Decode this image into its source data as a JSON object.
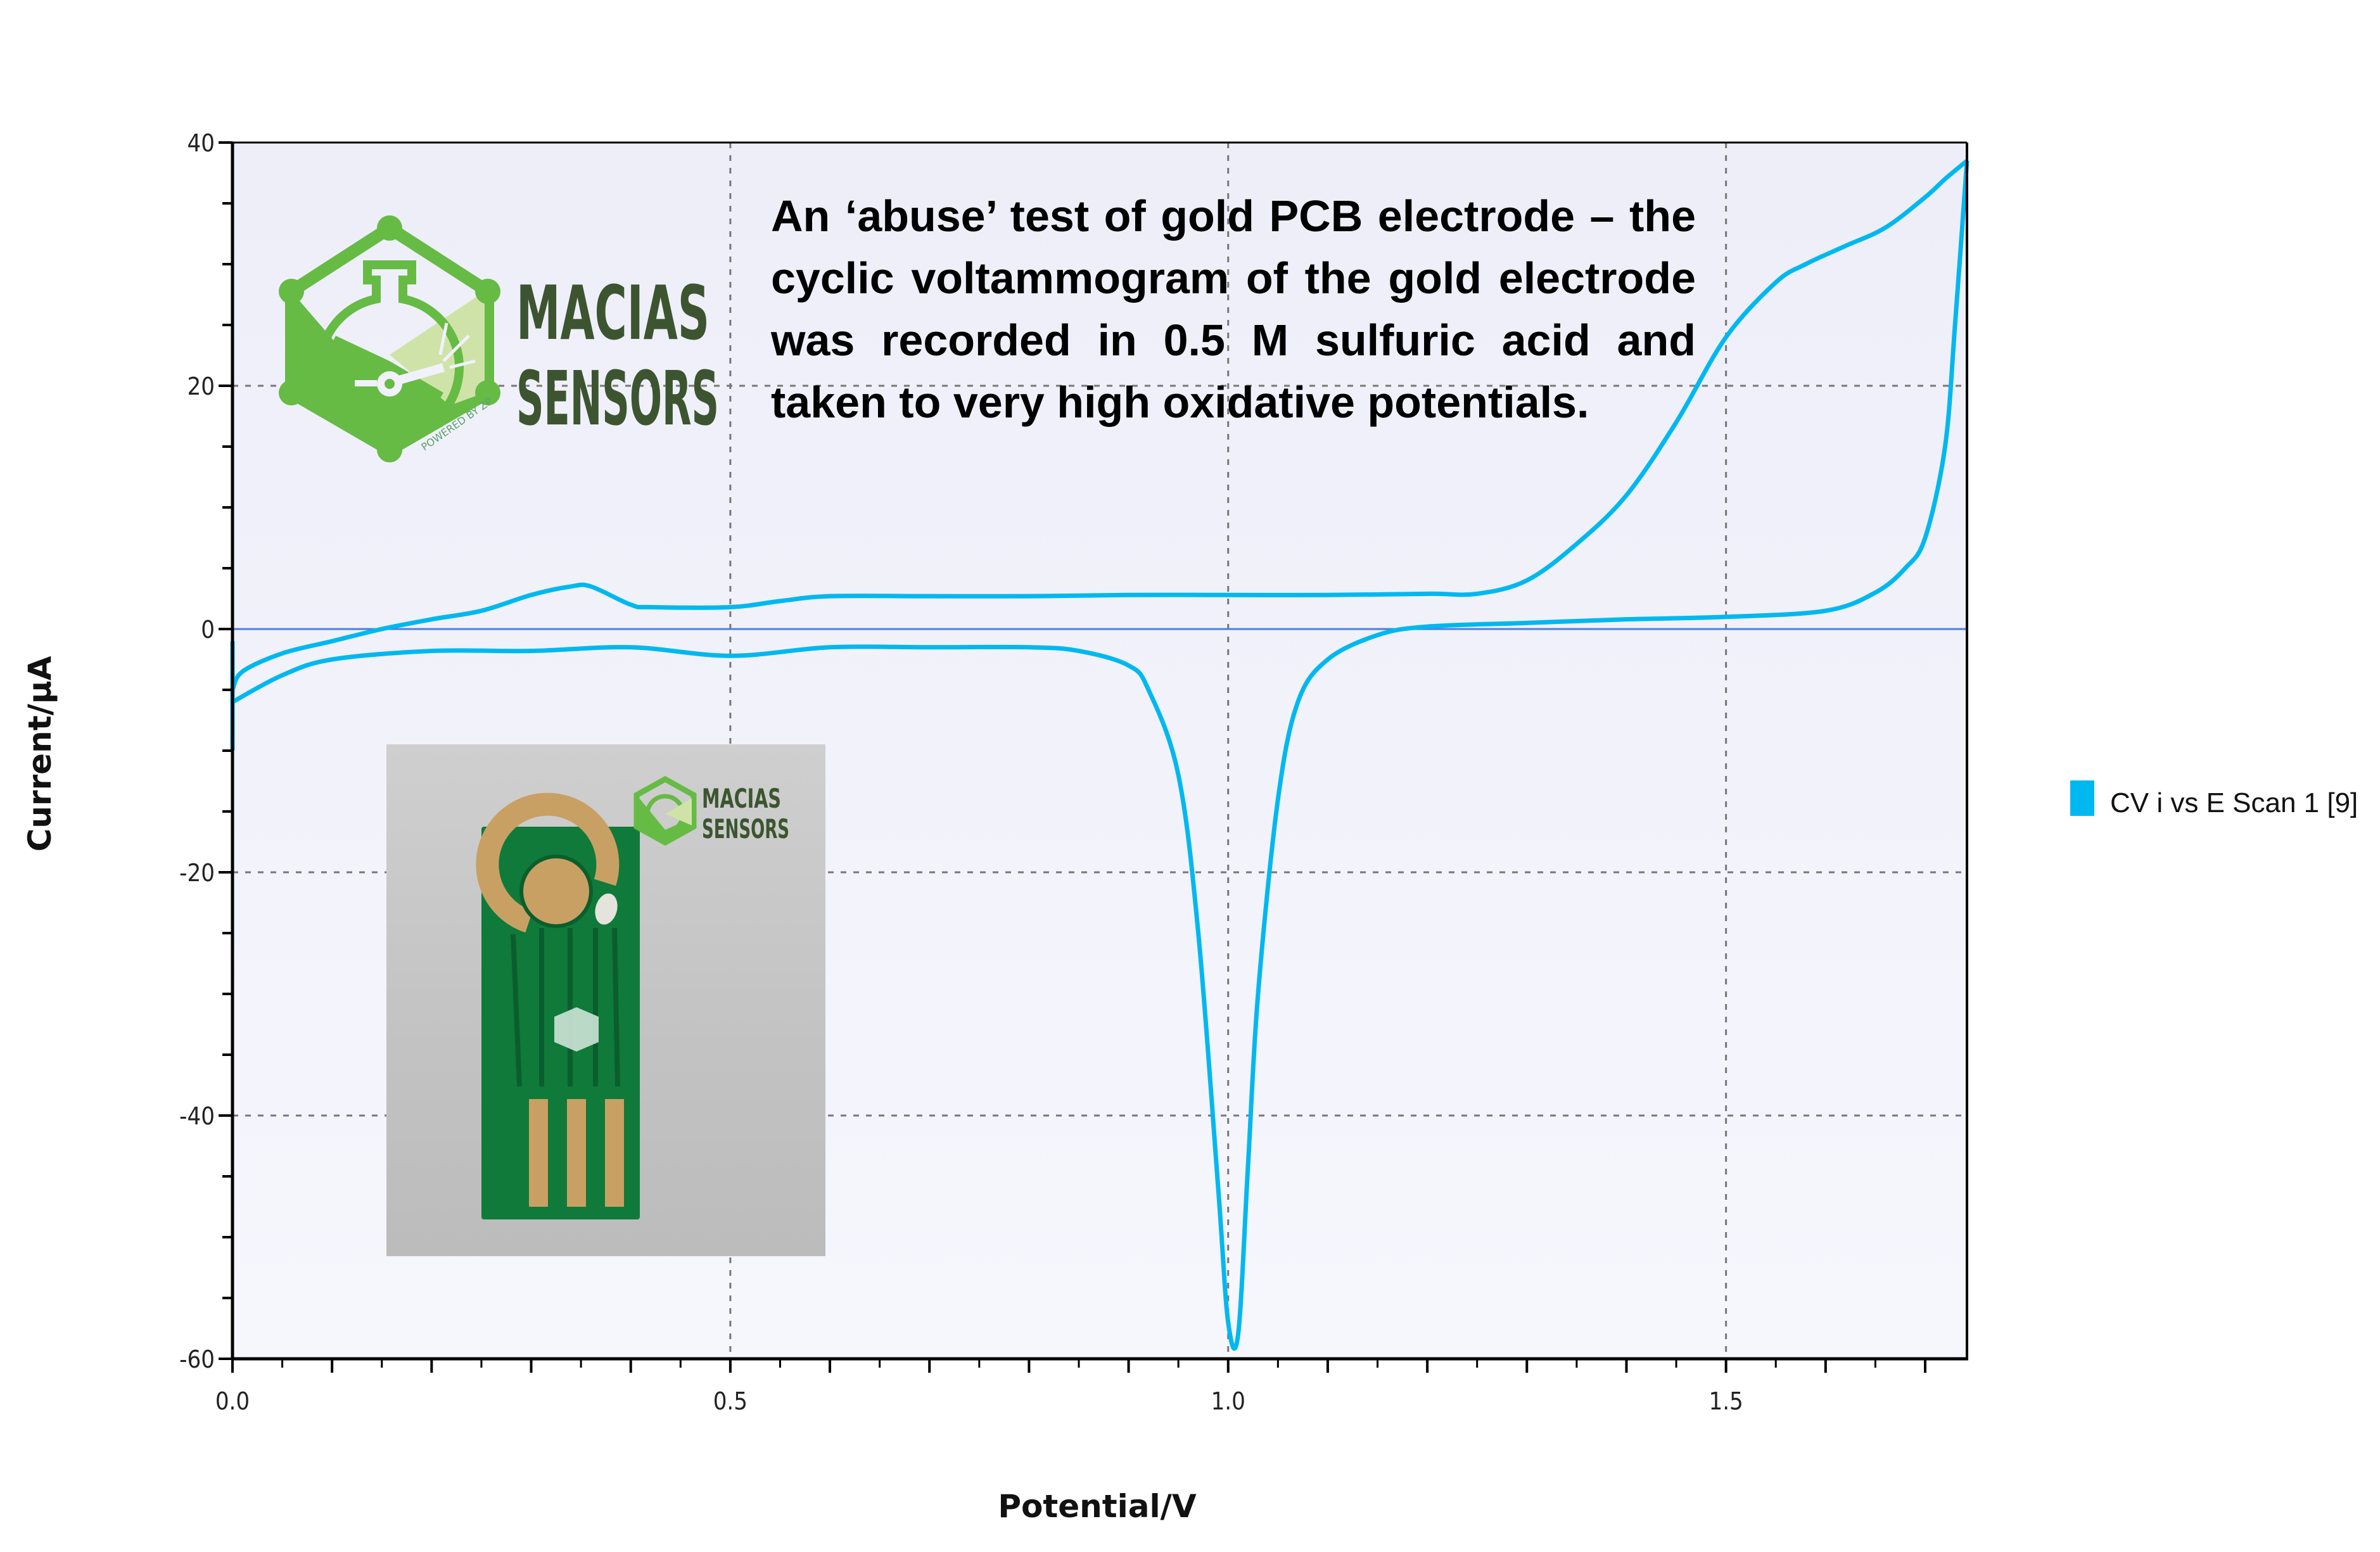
{
  "chart_data": {
    "type": "line",
    "title": "",
    "xlabel": "Potential/V",
    "ylabel": "Current/µA",
    "xlim": [
      0.0,
      1.742
    ],
    "ylim": [
      -60,
      40
    ],
    "x_ticks": [
      "0.0",
      "0.5",
      "1.0",
      "1.5"
    ],
    "y_ticks": [
      "40",
      "20",
      "0",
      "-20",
      "-40",
      "-60"
    ],
    "grid": true,
    "legend_position": "right",
    "series": [
      {
        "name": "CV i vs E Scan 1 [9]",
        "color": "#00b8f0",
        "forward_scan": {
          "x": [
            0.0,
            0.01,
            0.05,
            0.1,
            0.15,
            0.2,
            0.25,
            0.3,
            0.34,
            0.36,
            0.4,
            0.42,
            0.5,
            0.55,
            0.6,
            0.7,
            0.8,
            0.9,
            1.0,
            1.1,
            1.2,
            1.25,
            1.3,
            1.35,
            1.4,
            1.45,
            1.5,
            1.55,
            1.58,
            1.62,
            1.66,
            1.7,
            1.72,
            1.742
          ],
          "y": [
            -5,
            -3.5,
            -2,
            -1,
            0,
            0.8,
            1.5,
            2.8,
            3.5,
            3.5,
            2,
            1.8,
            1.8,
            2.3,
            2.7,
            2.7,
            2.7,
            2.8,
            2.8,
            2.8,
            2.9,
            2.9,
            4,
            7,
            11,
            17,
            24,
            28.5,
            30,
            31.5,
            33,
            35.5,
            37,
            38.5
          ]
        },
        "reverse_scan": {
          "x": [
            1.742,
            1.73,
            1.72,
            1.7,
            1.68,
            1.65,
            1.6,
            1.5,
            1.4,
            1.3,
            1.2,
            1.15,
            1.1,
            1.07,
            1.05,
            1.03,
            1.02,
            1.01,
            1.0,
            0.99,
            0.97,
            0.95,
            0.92,
            0.9,
            0.85,
            0.8,
            0.7,
            0.6,
            0.5,
            0.4,
            0.3,
            0.2,
            0.1,
            0.05,
            0.0
          ],
          "y": [
            38.5,
            25,
            15,
            7.5,
            5,
            3,
            1.5,
            1,
            0.8,
            0.5,
            0.2,
            -0.5,
            -2.5,
            -6,
            -14,
            -30,
            -44,
            -58,
            -57,
            -46,
            -25,
            -12,
            -5,
            -3,
            -1.8,
            -1.5,
            -1.5,
            -1.5,
            -2.2,
            -1.5,
            -1.8,
            -1.8,
            -2.5,
            -3.8,
            -6
          ]
        },
        "start_transient": {
          "x": [
            0.0,
            0.0
          ],
          "y": [
            -1,
            -10
          ]
        }
      }
    ],
    "annotations": [
      "An ‘abuse’ test of gold PCB electrode – the cyclic voltammogram of the gold electrode was recorded in 0.5 M sulfuric acid and taken to very high oxidative potentials."
    ]
  },
  "annotation": {
    "text": "An ‘abuse’ test of gold PCB electrode – the cyclic voltammogram of the gold electrode was recorded in 0.5 M sulfuric acid and taken to very high oxidative potentials."
  },
  "axes": {
    "x_label": "Potential/V",
    "y_label": "Current/µA",
    "x_ticks": [
      {
        "label": "0.0",
        "value": 0.0
      },
      {
        "label": "0.5",
        "value": 0.5
      },
      {
        "label": "1.0",
        "value": 1.0
      },
      {
        "label": "1.5",
        "value": 1.5
      }
    ],
    "y_ticks": [
      {
        "label": "40",
        "value": 40
      },
      {
        "label": "20",
        "value": 20
      },
      {
        "label": "0",
        "value": 0
      },
      {
        "label": "-20",
        "value": -20
      },
      {
        "label": "-40",
        "value": -40
      },
      {
        "label": "-60",
        "value": -60
      }
    ]
  },
  "legend": {
    "label": "CV i vs E Scan 1 [9]",
    "color": "#00b8f0"
  },
  "logo": {
    "line1": "MACIAS",
    "line2": "SENSORS",
    "tagline": "POWERED BY ZP",
    "green": "#66bb44",
    "light_green": "#cfe3a8",
    "text_color": "#3c5530"
  },
  "inset_photo": {
    "logo_line1": "MACIAS",
    "logo_line2": "SENSORS",
    "board_color": "#0f7a3a",
    "pad_color": "#c9a063"
  },
  "colors": {
    "plot_bg": "#f1f1fb",
    "trace": "#00b8f0",
    "zero_line": "#4a7de0",
    "grid": "#888888"
  }
}
